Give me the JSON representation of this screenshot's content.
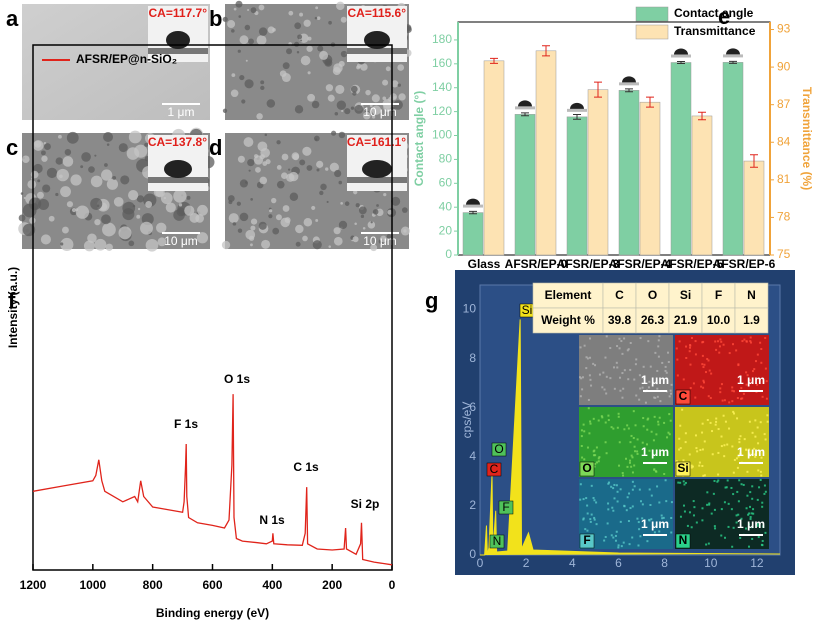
{
  "panels": [
    {
      "label": "a",
      "ca": "CA=117.7°",
      "scale": "1 μm"
    },
    {
      "label": "b",
      "ca": "CA=115.6°",
      "scale": "10 μm"
    },
    {
      "label": "c",
      "ca": "CA=137.8°",
      "scale": "10 μm"
    },
    {
      "label": "d",
      "ca": "CA=161.1°",
      "scale": "10 μm"
    }
  ],
  "chart_data": [
    {
      "type": "bar",
      "label": "e",
      "categories": [
        "Glass",
        "AFSR/EP-0",
        "AFSR/EP-3",
        "AFSR/EP-4",
        "AFSR/EP-5",
        "AFSR/EP-6"
      ],
      "series": [
        {
          "name": "Contact angle",
          "color": "#7fcfa3",
          "values": [
            35.5,
            117.7,
            115.6,
            137.8,
            161.1,
            161.2
          ],
          "errors": [
            1,
            1.2,
            2,
            1.2,
            0.8,
            0.8
          ]
        },
        {
          "name": "Transmittance",
          "color": "#fde3b3",
          "axis": "y2",
          "values": [
            90.5,
            91.3,
            88.2,
            87.2,
            86.1,
            82.5
          ],
          "errors": [
            0.2,
            0.4,
            0.6,
            0.4,
            0.3,
            0.5
          ]
        }
      ],
      "ylabel": "Contact angle (°)",
      "y2label": "Transmittance (%)",
      "ylim": [
        0,
        195
      ],
      "yticks": [
        0,
        20,
        40,
        60,
        80,
        100,
        120,
        140,
        160,
        180
      ],
      "y2lim": [
        75,
        93.6
      ],
      "y2ticks": [
        75,
        78,
        81,
        84,
        87,
        90,
        93
      ]
    },
    {
      "type": "line",
      "label": "f",
      "x": [
        1200,
        1100,
        1000,
        990,
        980,
        970,
        960,
        900,
        860,
        850,
        840,
        830,
        800,
        750,
        700,
        695,
        690,
        688,
        686,
        680,
        650,
        600,
        560,
        545,
        535,
        531,
        528,
        520,
        500,
        450,
        420,
        400,
        398,
        395,
        350,
        300,
        290,
        285,
        282,
        250,
        200,
        160,
        155,
        152,
        120,
        105,
        102,
        98,
        60,
        0
      ],
      "series": [
        {
          "name": "AFSR/EP@n-SiO₂",
          "color": "#e0241b",
          "values": [
            15,
            16,
            17,
            18,
            21,
            17,
            15,
            13,
            14,
            13,
            17,
            14,
            12,
            11.5,
            11,
            13,
            20,
            24,
            14,
            10,
            9,
            8.5,
            8,
            9.5,
            20,
            33.5,
            10,
            6,
            5.5,
            5.2,
            5,
            5.5,
            7,
            5,
            4.8,
            4.7,
            7,
            15.8,
            5,
            4,
            3.8,
            4,
            8,
            4,
            3,
            5,
            9,
            2,
            1.5,
            1
          ]
        }
      ],
      "xlabel": "Binding energy (eV)",
      "ylabel": "Intensity (a.u.)",
      "xlim": [
        1200,
        0
      ],
      "xticks": [
        1200,
        1000,
        800,
        600,
        400,
        200,
        0
      ],
      "ylim": [
        0,
        100
      ],
      "annotations": [
        "F 1s",
        "O 1s",
        "N 1s",
        "C 1s",
        "Si 2p"
      ]
    }
  ],
  "eds": {
    "label": "g",
    "table": {
      "header": [
        "Element",
        "C",
        "O",
        "Si",
        "F",
        "N"
      ],
      "row": [
        "Weight %",
        "39.8",
        "26.3",
        "21.9",
        "10.0",
        "1.9"
      ]
    },
    "peaks": [
      "Si",
      "O",
      "C",
      "F",
      "N"
    ],
    "xticks": [
      0,
      2,
      4,
      6,
      8,
      10,
      12
    ],
    "yticks": [
      0,
      2,
      4,
      6,
      8,
      10
    ],
    "yunit": "cps/eV",
    "maps": [
      {
        "element": null,
        "scale": "1 μm"
      },
      {
        "element": "C",
        "scale": "1 μm"
      },
      {
        "element": "O",
        "scale": "1 μm"
      },
      {
        "element": "Si",
        "scale": "1 μm"
      },
      {
        "element": "F",
        "scale": "1 μm"
      },
      {
        "element": "N",
        "scale": "1 μm"
      }
    ]
  }
}
